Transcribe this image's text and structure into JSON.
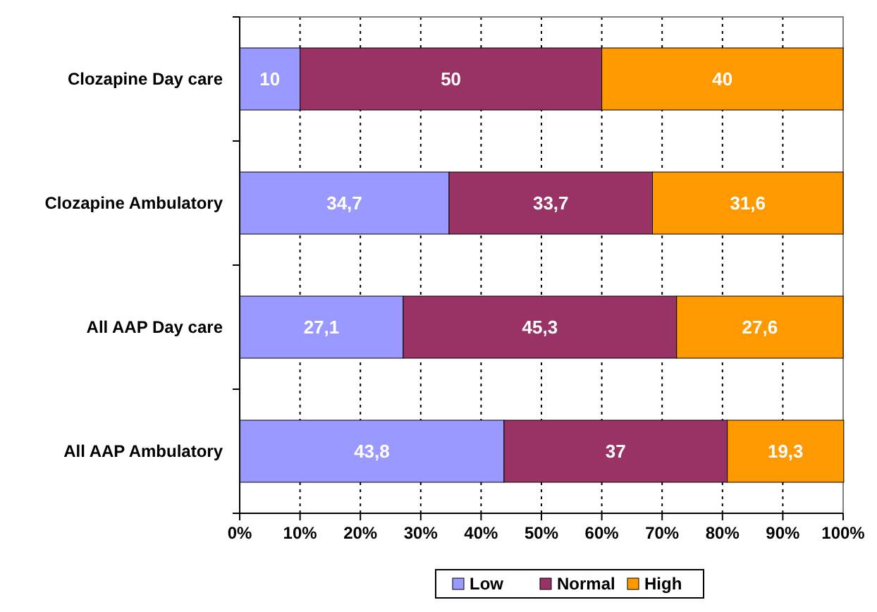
{
  "chart_data": {
    "type": "bar",
    "orientation": "horizontal",
    "stacked": true,
    "categories": [
      "Clozapine Day care",
      "Clozapine Ambulatory",
      "All AAP Day care",
      "All AAP Ambulatory"
    ],
    "series": [
      {
        "name": "Low",
        "color": "#9999ff",
        "values": [
          10,
          34.7,
          27.1,
          43.8
        ],
        "value_labels": [
          "10",
          "34,7",
          "27,1",
          "43,8"
        ]
      },
      {
        "name": "Normal",
        "color": "#993366",
        "values": [
          50,
          33.7,
          45.3,
          37
        ],
        "value_labels": [
          "50",
          "33,7",
          "45,3",
          "37"
        ]
      },
      {
        "name": "High",
        "color": "#ff9900",
        "values": [
          40,
          31.6,
          27.6,
          19.3
        ],
        "value_labels": [
          "40",
          "31,6",
          "27,6",
          "19,3"
        ]
      }
    ],
    "xlim": [
      0,
      100
    ],
    "xticks": [
      {
        "value": 0,
        "label": "0%"
      },
      {
        "value": 10,
        "label": "10%"
      },
      {
        "value": 20,
        "label": "20%"
      },
      {
        "value": 30,
        "label": "30%"
      },
      {
        "value": 40,
        "label": "40%"
      },
      {
        "value": 50,
        "label": "50%"
      },
      {
        "value": 60,
        "label": "60%"
      },
      {
        "value": 70,
        "label": "70%"
      },
      {
        "value": 80,
        "label": "80%"
      },
      {
        "value": 90,
        "label": "90%"
      },
      {
        "value": 100,
        "label": "100%"
      }
    ],
    "grid": "x",
    "legend": "bottom"
  }
}
